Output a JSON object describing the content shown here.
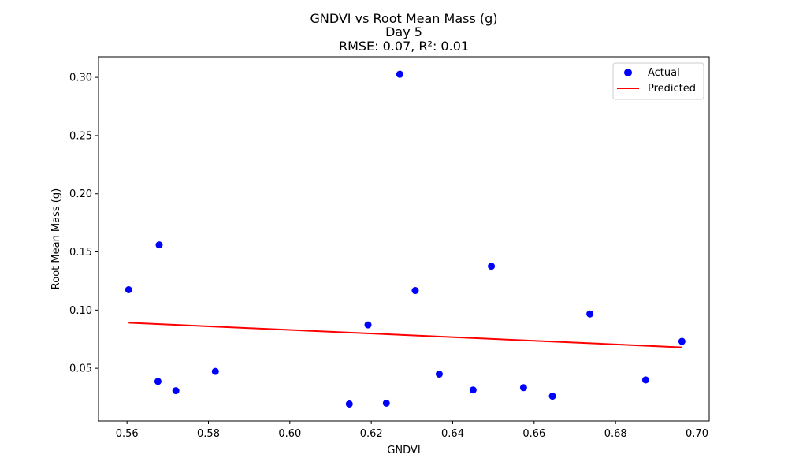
{
  "chart_data": {
    "type": "scatter",
    "title_lines": [
      "GNDVI vs Root Mean Mass (g)",
      "Day 5",
      "RMSE: 0.07, R²: 0.01"
    ],
    "xlabel": "GNDVI",
    "ylabel": "Root Mean Mass (g)",
    "xlim": [
      0.553,
      0.703
    ],
    "ylim": [
      0.0047,
      0.3177
    ],
    "xticks": [
      {
        "value": 0.56,
        "label": "0.56"
      },
      {
        "value": 0.58,
        "label": "0.58"
      },
      {
        "value": 0.6,
        "label": "0.60"
      },
      {
        "value": 0.62,
        "label": "0.62"
      },
      {
        "value": 0.64,
        "label": "0.64"
      },
      {
        "value": 0.66,
        "label": "0.66"
      },
      {
        "value": 0.68,
        "label": "0.68"
      },
      {
        "value": 0.7,
        "label": "0.70"
      }
    ],
    "yticks": [
      {
        "value": 0.05,
        "label": "0.05"
      },
      {
        "value": 0.1,
        "label": "0.10"
      },
      {
        "value": 0.15,
        "label": "0.15"
      },
      {
        "value": 0.2,
        "label": "0.20"
      },
      {
        "value": 0.25,
        "label": "0.25"
      },
      {
        "value": 0.3,
        "label": "0.30"
      }
    ],
    "grid": false,
    "legend_position": "top-right",
    "series": [
      {
        "name": "Actual",
        "kind": "scatter",
        "color": "#0000ff",
        "points": [
          {
            "x": 0.5604,
            "y": 0.1175
          },
          {
            "x": 0.5676,
            "y": 0.0387
          },
          {
            "x": 0.5679,
            "y": 0.156
          },
          {
            "x": 0.572,
            "y": 0.0307
          },
          {
            "x": 0.5817,
            "y": 0.0473
          },
          {
            "x": 0.6146,
            "y": 0.0193
          },
          {
            "x": 0.6192,
            "y": 0.0873
          },
          {
            "x": 0.6237,
            "y": 0.02
          },
          {
            "x": 0.627,
            "y": 0.3027
          },
          {
            "x": 0.6308,
            "y": 0.1168
          },
          {
            "x": 0.6367,
            "y": 0.045
          },
          {
            "x": 0.645,
            "y": 0.0313
          },
          {
            "x": 0.6495,
            "y": 0.1377
          },
          {
            "x": 0.6574,
            "y": 0.0333
          },
          {
            "x": 0.6645,
            "y": 0.026
          },
          {
            "x": 0.6737,
            "y": 0.0967
          },
          {
            "x": 0.6874,
            "y": 0.04
          },
          {
            "x": 0.6963,
            "y": 0.0731
          }
        ]
      },
      {
        "name": "Predicted",
        "kind": "line",
        "color": "#ff0000",
        "points": [
          {
            "x": 0.5604,
            "y": 0.0891
          },
          {
            "x": 0.6963,
            "y": 0.068
          }
        ]
      }
    ]
  }
}
